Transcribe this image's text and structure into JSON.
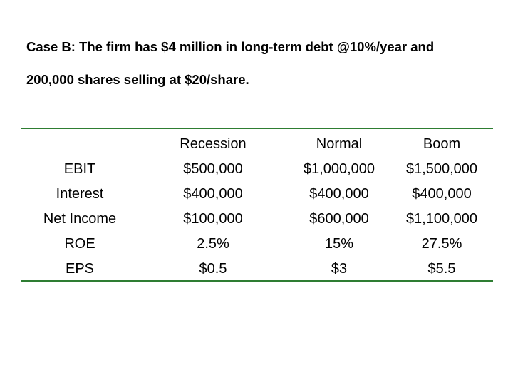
{
  "intro": {
    "line1": "Case B: The firm has $4 million in long-term debt @10%/year and",
    "line2": "200,000 shares selling at $20/share."
  },
  "table": {
    "columns": [
      "",
      "Recession",
      "Normal",
      "Boom"
    ],
    "rows": [
      {
        "label": "EBIT",
        "values": [
          "$500,000",
          "$1,000,000",
          "$1,500,000"
        ]
      },
      {
        "label": "Interest",
        "values": [
          "$400,000",
          "$400,000",
          "$400,000"
        ]
      },
      {
        "label": "Net Income",
        "values": [
          "$100,000",
          "$600,000",
          "$1,100,000"
        ]
      },
      {
        "label": "ROE",
        "values": [
          "2.5%",
          "15%",
          "27.5%"
        ]
      },
      {
        "label": "EPS",
        "values": [
          "$0.5",
          "$3",
          "$5.5"
        ]
      }
    ]
  },
  "colors": {
    "rule": "#2e7d32",
    "text": "#000000",
    "background": "#ffffff"
  }
}
